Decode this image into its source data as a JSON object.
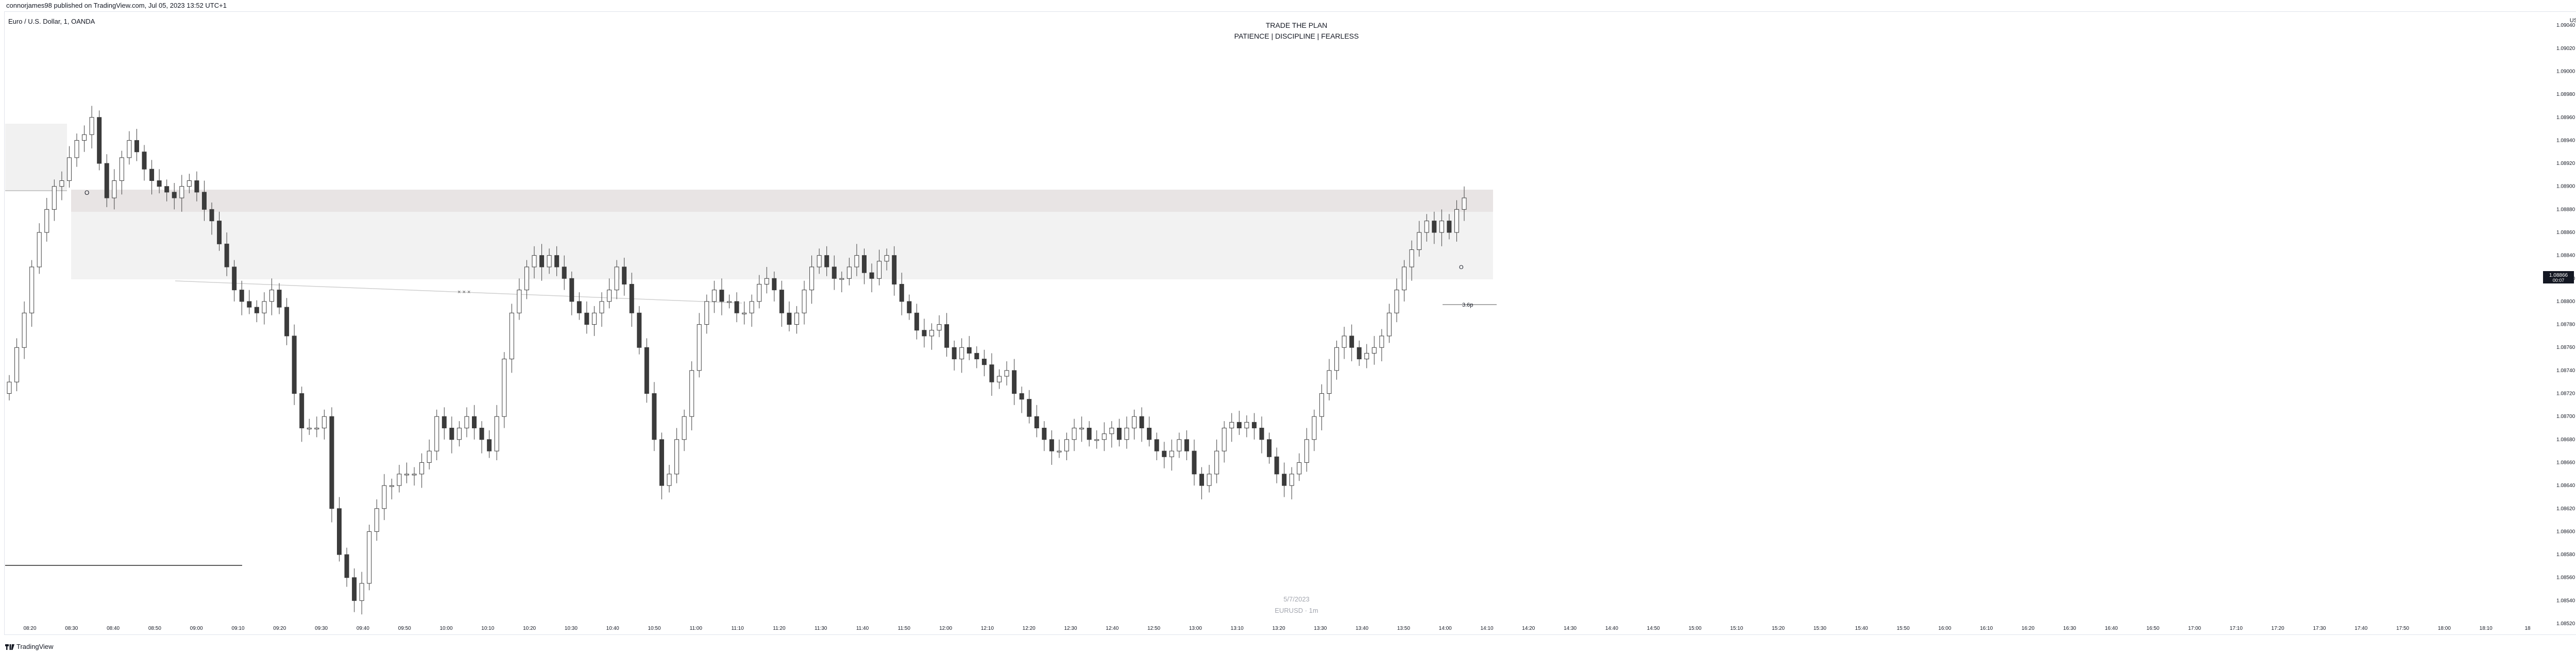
{
  "header": {
    "published": "connorjames98 published on TradingView.com, Jul 05, 2023 13:52 UTC+1",
    "symbol": "Euro / U.S. Dollar, 1, OANDA",
    "title_line1": "TRADE THE PLAN",
    "title_line2": "PATIENCE  |  DISCIPLINE  |  FEARLESS",
    "currency": "USD"
  },
  "watermark": {
    "date": "5/7/2023",
    "pair": "EURUSD · 1m"
  },
  "footer": {
    "brand": "TradingView"
  },
  "price_tags": {
    "last_price": "1.08866",
    "countdown": "00:07",
    "target_label": "3.6p"
  },
  "colors": {
    "candle": "#3b3b3b",
    "zone_upper": "#e8e4e4",
    "zone_lower": "#f2f2f2",
    "box_left": "#f1f1f1",
    "level_line": "#5d5d5d",
    "accent": "#131722"
  },
  "chart_data": {
    "type": "candlestick",
    "x_axis_ticks": [
      "08:20",
      "08:30",
      "08:40",
      "08:50",
      "09:00",
      "09:10",
      "09:20",
      "09:30",
      "09:40",
      "09:50",
      "10:00",
      "10:10",
      "10:20",
      "10:30",
      "10:40",
      "10:50",
      "11:00",
      "11:10",
      "11:20",
      "11:30",
      "11:40",
      "11:50",
      "12:00",
      "12:10",
      "12:20",
      "12:30",
      "12:40",
      "12:50",
      "13:00",
      "13:10",
      "13:20",
      "13:30",
      "13:40",
      "13:50",
      "14:00",
      "14:10",
      "14:20",
      "14:30",
      "14:40",
      "14:50",
      "15:00",
      "15:10",
      "15:20",
      "15:30",
      "15:40",
      "15:50",
      "16:00",
      "16:10",
      "16:20",
      "16:30",
      "16:40",
      "16:50",
      "17:00",
      "17:10",
      "17:20",
      "17:30",
      "17:40",
      "17:50",
      "18:00",
      "18:10",
      "18"
    ],
    "y_axis_ticks": [
      "1.09040",
      "1.09020",
      "1.09000",
      "1.08980",
      "1.08960",
      "1.08940",
      "1.08920",
      "1.08900",
      "1.08880",
      "1.08860",
      "1.08840",
      "1.08820",
      "1.08800",
      "1.08780",
      "1.08760",
      "1.08740",
      "1.08720",
      "1.08700",
      "1.08680",
      "1.08660",
      "1.08640",
      "1.08620",
      "1.08600",
      "1.08580",
      "1.08560",
      "1.08540",
      "1.08520"
    ],
    "ylim": [
      1.0852,
      1.09045
    ],
    "candles_close": [
      1.0873,
      1.0876,
      1.0879,
      1.0883,
      1.0886,
      1.0888,
      1.089,
      1.08905,
      1.08925,
      1.0894,
      1.08945,
      1.0896,
      1.0892,
      1.0889,
      1.08905,
      1.08925,
      1.0894,
      1.0893,
      1.08915,
      1.08905,
      1.089,
      1.08895,
      1.0889,
      1.089,
      1.08905,
      1.08895,
      1.0888,
      1.0887,
      1.0885,
      1.0883,
      1.0881,
      1.088,
      1.08795,
      1.0879,
      1.088,
      1.0881,
      1.08795,
      1.0877,
      1.0872,
      1.0869,
      1.0869,
      1.0869,
      1.087,
      1.0862,
      1.0858,
      1.0856,
      1.0854,
      1.08555,
      1.086,
      1.0862,
      1.0864,
      1.0864,
      1.0865,
      1.0865,
      1.0865,
      1.0866,
      1.0867,
      1.087,
      1.0869,
      1.0868,
      1.0869,
      1.087,
      1.0869,
      1.0868,
      1.0867,
      1.087,
      1.0875,
      1.0879,
      1.0881,
      1.0883,
      1.0884,
      1.0883,
      1.0884,
      1.0883,
      1.0882,
      1.088,
      1.0879,
      1.0878,
      1.0879,
      1.088,
      1.0881,
      1.0883,
      1.08815,
      1.0879,
      1.0876,
      1.0872,
      1.0868,
      1.0864,
      1.0865,
      1.0868,
      1.087,
      1.0874,
      1.0878,
      1.088,
      1.0881,
      1.088,
      1.088,
      1.0879,
      1.0879,
      1.088,
      1.08815,
      1.0882,
      1.0881,
      1.0879,
      1.0878,
      1.0879,
      1.0881,
      1.0883,
      1.0884,
      1.0883,
      1.0882,
      1.0882,
      1.0883,
      1.0884,
      1.08825,
      1.0882,
      1.08835,
      1.0884,
      1.08815,
      1.088,
      1.0879,
      1.08775,
      1.0877,
      1.08775,
      1.0878,
      1.0876,
      1.0875,
      1.0876,
      1.08755,
      1.0875,
      1.08745,
      1.0873,
      1.08735,
      1.0874,
      1.0872,
      1.08715,
      1.087,
      1.0869,
      1.0868,
      1.0867,
      1.0867,
      1.0868,
      1.0869,
      1.0869,
      1.0868,
      1.0868,
      1.08685,
      1.0869,
      1.0868,
      1.0869,
      1.087,
      1.0869,
      1.0868,
      1.0867,
      1.08665,
      1.0867,
      1.0868,
      1.0867,
      1.0865,
      1.0864,
      1.0865,
      1.0867,
      1.0869,
      1.08695,
      1.0869,
      1.08695,
      1.0869,
      1.0868,
      1.08665,
      1.0865,
      1.0864,
      1.0865,
      1.0866,
      1.0868,
      1.087,
      1.0872,
      1.0874,
      1.0876,
      1.0877,
      1.0876,
      1.0875,
      1.08755,
      1.0876,
      1.0877,
      1.0879,
      1.0881,
      1.0883,
      1.08845,
      1.0886,
      1.0887,
      1.0886,
      1.0887,
      1.0886,
      1.0888,
      1.0889
    ]
  }
}
